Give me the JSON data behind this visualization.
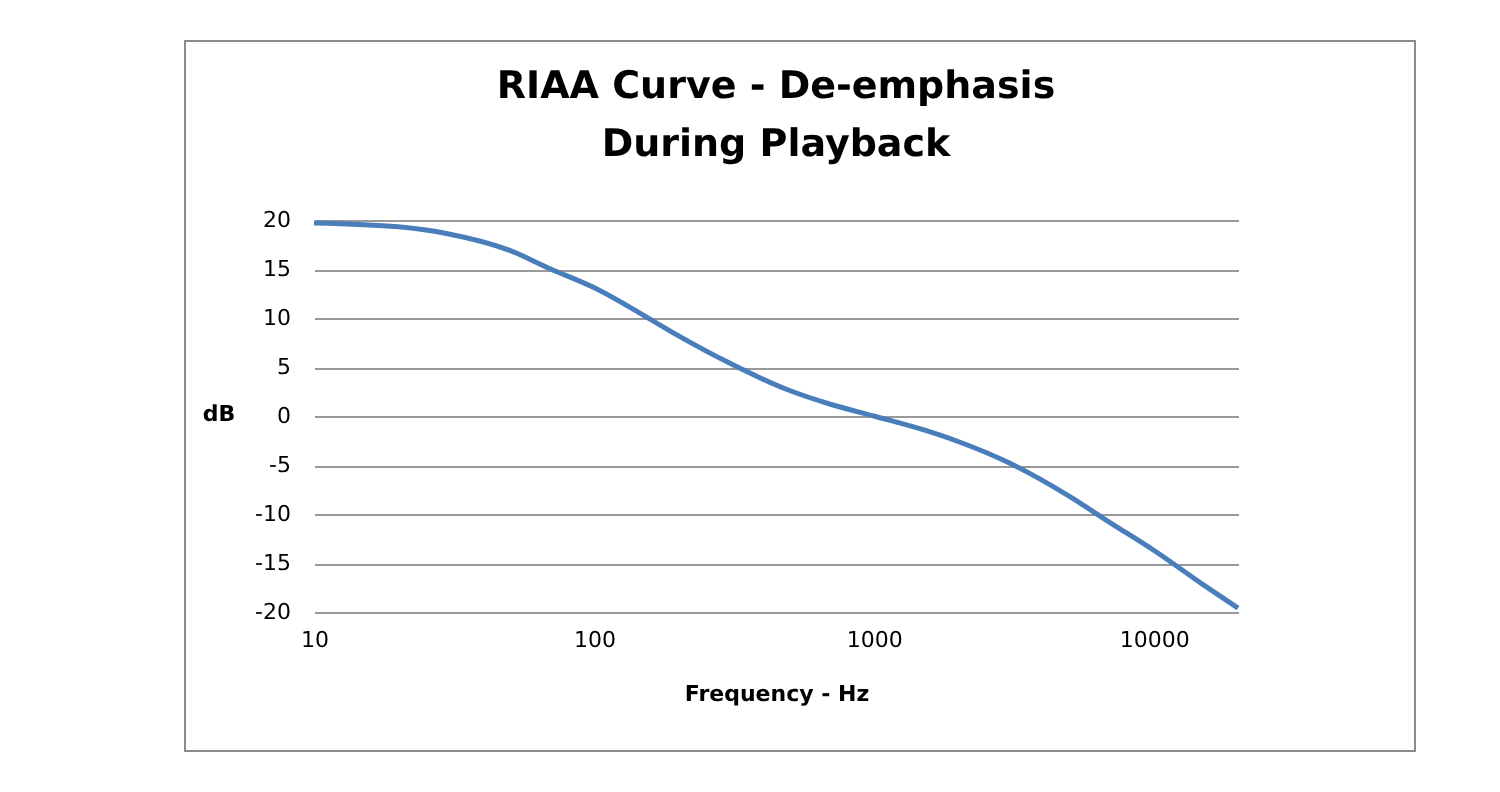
{
  "chart_data": {
    "type": "line",
    "title": "RIAA Curve - De-emphasis\nDuring Playback",
    "xlabel": "Frequency - Hz",
    "ylabel": "dB",
    "x": [
      10,
      20,
      30,
      50,
      70,
      100,
      150,
      200,
      300,
      500,
      700,
      1000,
      1500,
      2000,
      3000,
      5000,
      7000,
      10000,
      15000,
      20000
    ],
    "series": [
      {
        "color": "#4a7ebb",
        "values": [
          19.7,
          19.3,
          18.6,
          16.9,
          15.0,
          13.1,
          10.3,
          8.2,
          5.5,
          2.6,
          1.2,
          0,
          -1.4,
          -2.6,
          -4.7,
          -8.2,
          -10.9,
          -13.7,
          -17.2,
          -19.6
        ]
      }
    ],
    "log": "x",
    "xlim": [
      10,
      20000
    ],
    "xticks": [
      10,
      100,
      1000,
      10000
    ],
    "ylim": [
      -20,
      20
    ],
    "yticks": [
      -20,
      -15,
      -10,
      -5,
      0,
      5,
      10,
      15,
      20
    ],
    "grid": "y",
    "marker": "none",
    "line_style": "solid"
  }
}
